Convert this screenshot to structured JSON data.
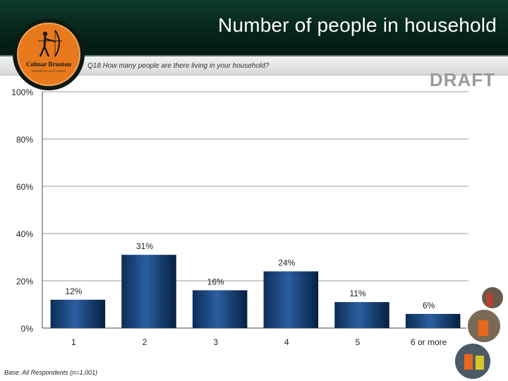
{
  "header": {
    "title": "Number of people in household"
  },
  "question": "Q18  How many people are there living in your household?",
  "draft_label": "DRAFT",
  "logo": {
    "brand": "Colmar Brunton",
    "tagline": "RESEARCH WITH VISION"
  },
  "base_note": "Base: All Respondents (n=1,001)",
  "colors": {
    "header_bg": "#062419",
    "bar": "#0b2d57",
    "bar_highlight": "#2b5ea0",
    "logo_orange": "#e8791c"
  },
  "chart_data": {
    "type": "bar",
    "title": "",
    "xlabel": "",
    "ylabel": "",
    "categories": [
      "1",
      "2",
      "3",
      "4",
      "5",
      "6 or more"
    ],
    "values": [
      12,
      31,
      16,
      24,
      11,
      6
    ],
    "data_labels": [
      "12%",
      "31%",
      "16%",
      "24%",
      "11%",
      "6%"
    ],
    "ylim": [
      0,
      100
    ],
    "y_ticks": [
      0,
      20,
      40,
      60,
      80,
      100
    ],
    "y_tick_labels": [
      "0%",
      "20%",
      "40%",
      "60%",
      "80%",
      "100%"
    ],
    "grid": true,
    "legend": "none"
  }
}
